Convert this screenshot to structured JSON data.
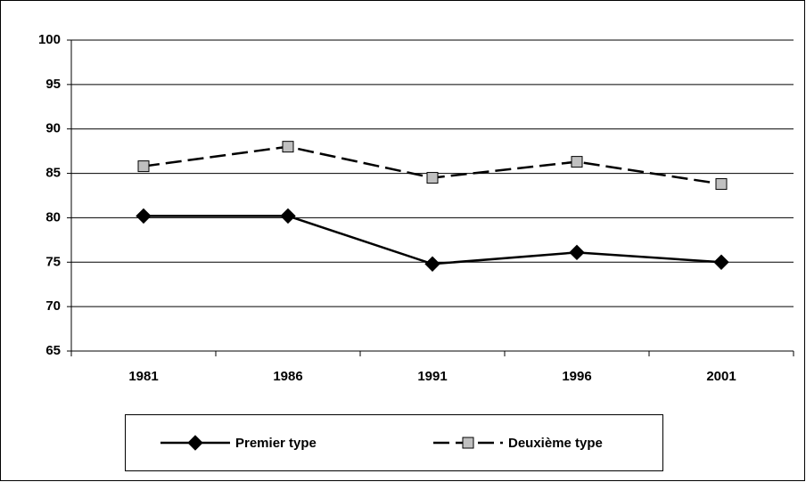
{
  "chart_data": {
    "type": "line",
    "categories": [
      "1981",
      "1986",
      "1991",
      "1996",
      "2001"
    ],
    "series": [
      {
        "name": "Premier type",
        "color": "#000000",
        "marker": "diamond",
        "marker_color": "#000000",
        "dashed": false,
        "values": [
          80.2,
          80.2,
          74.8,
          76.1,
          75.0
        ]
      },
      {
        "name": "Deuxième type",
        "color": "#000000",
        "marker": "square",
        "marker_color": "#c0c0c0",
        "dashed": true,
        "values": [
          85.8,
          88.0,
          84.5,
          86.3,
          83.8
        ]
      }
    ],
    "ylim": [
      65,
      100
    ],
    "yticks": [
      65,
      70,
      75,
      80,
      85,
      90,
      95,
      100
    ],
    "grid": true,
    "legend": "bottom"
  }
}
